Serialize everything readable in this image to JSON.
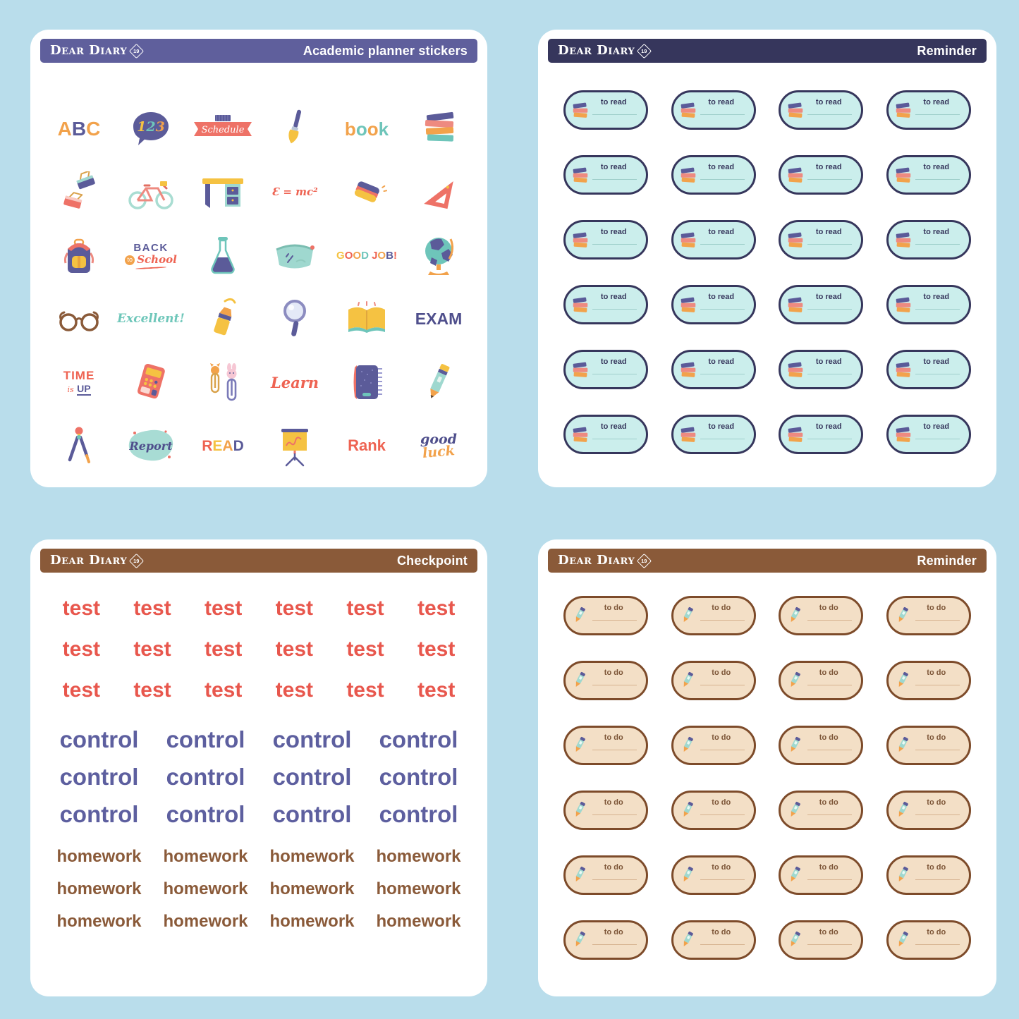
{
  "page": {
    "background": "#b9ddeb"
  },
  "brand": {
    "name": "Dear Diary",
    "badge": "19"
  },
  "palette": {
    "navy": "#5b5b99",
    "dark_navy": "#36365c",
    "coral": "#ee6352",
    "orange": "#f2a24b",
    "yellow": "#f5c242",
    "teal": "#6ec5ba",
    "brown": "#8a5a39",
    "header_purple": "#5f5f9c",
    "capsule_cyan": "#cbeeec",
    "capsule_tan": "#f3dfc6"
  },
  "sheets": {
    "academic": {
      "header": {
        "title": "Academic planner stickers",
        "color": "#5f5f9c"
      },
      "stickers": [
        {
          "id": "abc",
          "kind": "word",
          "label": "ABC",
          "colors": [
            "#f2a24b",
            "#5b5b99",
            "#f2a24b"
          ],
          "size": 28
        },
        {
          "id": "numbers-bubble",
          "kind": "icon",
          "icon": "speech-bubble-123-icon",
          "label": "123"
        },
        {
          "id": "schedule-banner",
          "kind": "icon",
          "icon": "schedule-banner-icon",
          "label": "Schedule"
        },
        {
          "id": "paintbrush",
          "kind": "icon",
          "icon": "paintbrush-icon"
        },
        {
          "id": "book-word",
          "kind": "word",
          "label": "book",
          "colors": [
            "#f2a24b",
            "#6ec5ba",
            "#f2a24b",
            "#6ec5ba"
          ],
          "size": 26
        },
        {
          "id": "books-stack",
          "kind": "icon",
          "icon": "books-stack-icon"
        },
        {
          "id": "binder-clips",
          "kind": "icon",
          "icon": "binder-clips-icon"
        },
        {
          "id": "bicycle",
          "kind": "icon",
          "icon": "bicycle-icon"
        },
        {
          "id": "desk",
          "kind": "icon",
          "icon": "desk-icon"
        },
        {
          "id": "formula",
          "kind": "word",
          "label": "Ɛ = mc²",
          "colors": [
            "#ee6352"
          ],
          "size": 15,
          "script": true
        },
        {
          "id": "eraser",
          "kind": "icon",
          "icon": "eraser-icon"
        },
        {
          "id": "triangle-ruler",
          "kind": "icon",
          "icon": "triangle-ruler-icon"
        },
        {
          "id": "backpack",
          "kind": "icon",
          "icon": "backpack-icon"
        },
        {
          "id": "back-to-school",
          "kind": "icon",
          "icon": "back-to-school-icon",
          "label": "BACK to School"
        },
        {
          "id": "flask",
          "kind": "icon",
          "icon": "flask-icon"
        },
        {
          "id": "pencil-case",
          "kind": "icon",
          "icon": "pencil-case-icon"
        },
        {
          "id": "good-job",
          "kind": "word",
          "label": "GOOD JOB!",
          "colors": [
            "#f5c242",
            "#ee6352",
            "#f2a24b",
            "#6ec5ba",
            "#ee6352",
            "#ee6352",
            "#f2a24b",
            "#5b5b99",
            "#ee6352"
          ],
          "size": 15
        },
        {
          "id": "globe",
          "kind": "icon",
          "icon": "globe-icon"
        },
        {
          "id": "glasses",
          "kind": "icon",
          "icon": "glasses-icon"
        },
        {
          "id": "excellent",
          "kind": "word",
          "label": "Excellent!",
          "colors": [
            "#6fc7ba"
          ],
          "size": 17,
          "script": true
        },
        {
          "id": "highlighter",
          "kind": "icon",
          "icon": "highlighter-icon"
        },
        {
          "id": "magnifier",
          "kind": "icon",
          "icon": "magnifier-icon"
        },
        {
          "id": "open-book",
          "kind": "icon",
          "icon": "open-book-icon"
        },
        {
          "id": "exam",
          "kind": "word",
          "label": "EXAM",
          "colors": [
            "#4f4f8c"
          ],
          "size": 23
        },
        {
          "id": "time-is-up",
          "kind": "icon",
          "icon": "time-is-up-icon",
          "label": "TIME is UP"
        },
        {
          "id": "calculator",
          "kind": "icon",
          "icon": "calculator-icon"
        },
        {
          "id": "paperclips",
          "kind": "icon",
          "icon": "paperclips-icon"
        },
        {
          "id": "learn",
          "kind": "word",
          "label": "Learn",
          "colors": [
            "#ee6352"
          ],
          "size": 21,
          "script": true
        },
        {
          "id": "notebook",
          "kind": "icon",
          "icon": "notebook-icon"
        },
        {
          "id": "pencil",
          "kind": "icon",
          "icon": "pencil-color-icon"
        },
        {
          "id": "compass",
          "kind": "icon",
          "icon": "compass-icon"
        },
        {
          "id": "report",
          "kind": "icon",
          "icon": "report-blob-icon",
          "label": "Report"
        },
        {
          "id": "read",
          "kind": "word",
          "label": "READ",
          "colors": [
            "#ee6352",
            "#f5c242",
            "#f2a24b",
            "#5b5b99"
          ],
          "size": 21
        },
        {
          "id": "flipchart",
          "kind": "icon",
          "icon": "flipchart-icon"
        },
        {
          "id": "rank",
          "kind": "word",
          "label": "Rank",
          "colors": [
            "#ee6352"
          ],
          "size": 22
        },
        {
          "id": "good-luck",
          "kind": "icon",
          "icon": "good-luck-icon",
          "label": "good luck"
        }
      ]
    },
    "reminder_read": {
      "header": {
        "title": "Reminder",
        "color": "#36365c"
      },
      "capsule": {
        "label": "to read",
        "icon": "books-stack-icon",
        "sticker_name": "to-read-sticker",
        "fill": "#cbeeec",
        "border": "#36365c",
        "text": "#36365c",
        "line": "#9fcfcb"
      },
      "rows": 6,
      "columns": 4
    },
    "checkpoint": {
      "header": {
        "title": "Checkpoint",
        "color": "#8a5a39"
      },
      "groups": [
        {
          "label": "test",
          "color": "#e8574d",
          "columns": 6,
          "rows": 3,
          "size": 30,
          "row_gap": 28,
          "group_gap": 10
        },
        {
          "label": "control",
          "color": "#5d5f9f",
          "columns": 4,
          "rows": 3,
          "size": 33,
          "row_gap": 20,
          "group_gap": 12
        },
        {
          "label": "homework",
          "color": "#8a5a39",
          "columns": 4,
          "rows": 3,
          "size": 24,
          "row_gap": 22,
          "group_gap": 0
        }
      ]
    },
    "reminder_todo": {
      "header": {
        "title": "Reminder",
        "color": "#8a5a39"
      },
      "capsule": {
        "label": "to do",
        "icon": "pencil-icon",
        "sticker_name": "to-do-sticker",
        "fill": "#f3dfc6",
        "border": "#7d4b2a",
        "text": "#7d5638",
        "line": "#d6b28f"
      },
      "rows": 6,
      "columns": 4
    }
  }
}
